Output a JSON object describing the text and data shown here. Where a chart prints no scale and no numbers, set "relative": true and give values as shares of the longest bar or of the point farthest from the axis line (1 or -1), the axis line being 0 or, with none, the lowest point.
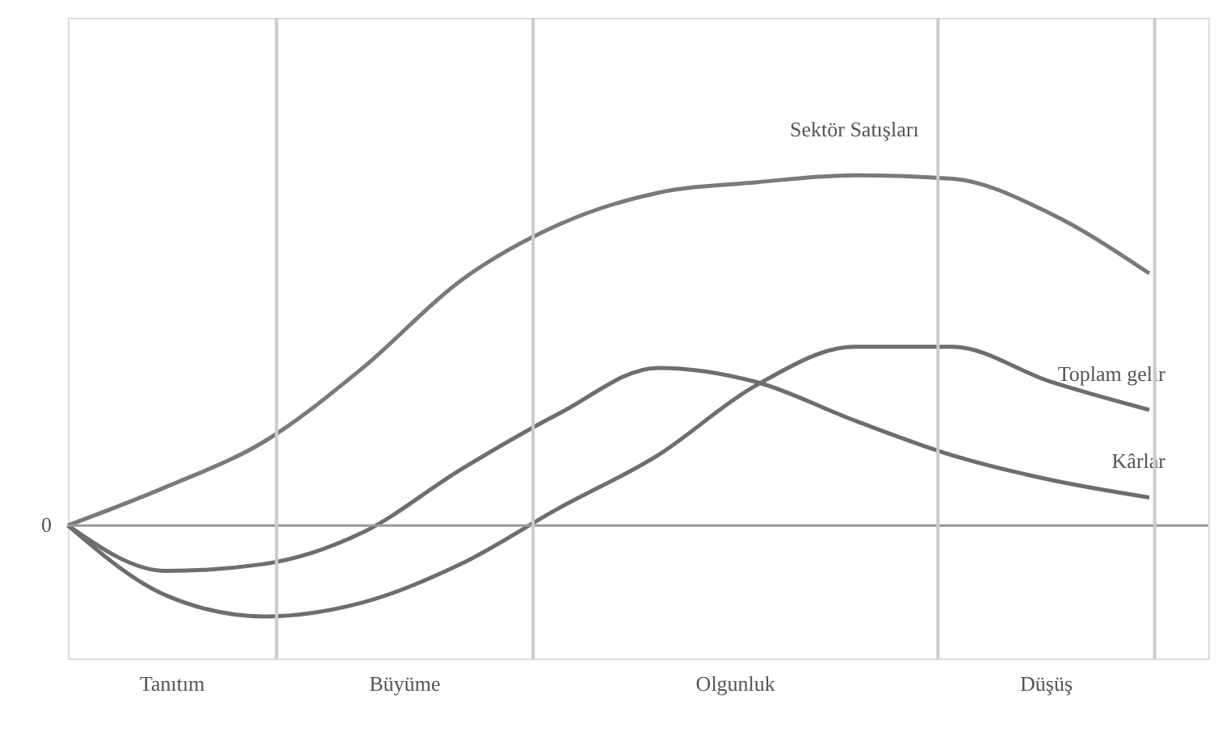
{
  "chart_data": {
    "type": "line",
    "relative": true,
    "categories": [
      null,
      null,
      null,
      null,
      null,
      null,
      null,
      null,
      null,
      null,
      null,
      null
    ],
    "series": [
      {
        "name": "Sektör Satışları",
        "color": "#7a7a7a",
        "values": [
          0,
          0.11,
          0.24,
          0.45,
          0.7,
          0.86,
          0.95,
          0.98,
          1.0,
          0.99,
          0.89,
          0.72
        ]
      },
      {
        "name": "Kârlar",
        "color": "#6e6e6e",
        "values": [
          0,
          -0.13,
          -0.11,
          -0.02,
          0.16,
          0.32,
          0.45,
          0.41,
          0.3,
          0.2,
          0.13,
          0.08
        ]
      },
      {
        "name": "Toplam gelir",
        "color": "#6e6e6e",
        "values": [
          0,
          -0.2,
          -0.26,
          -0.22,
          -0.11,
          0.05,
          0.2,
          0.4,
          0.51,
          0.51,
          0.41,
          0.33
        ]
      }
    ],
    "ref_lines": [
      {
        "axis": "y",
        "value": 0,
        "label": "0",
        "color": "#999999"
      }
    ],
    "annotations": [
      "Tanıtım",
      "Büyüme",
      "Olgunluk",
      "Düşüş"
    ],
    "line_style": "solid",
    "marker": "none"
  }
}
